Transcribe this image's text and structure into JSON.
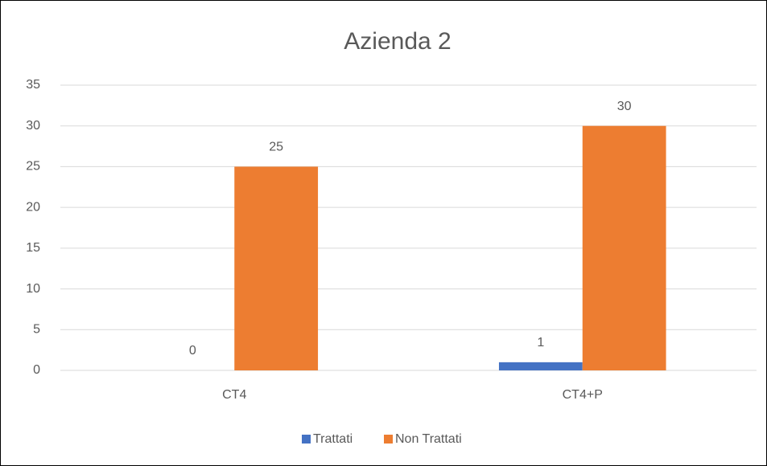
{
  "chart_data": {
    "type": "bar",
    "title": "Azienda 2",
    "categories": [
      "CT4",
      "CT4+P"
    ],
    "series": [
      {
        "name": "Trattati",
        "color": "#4472c4",
        "values": [
          0,
          1
        ]
      },
      {
        "name": "Non Trattati",
        "color": "#ed7d31",
        "values": [
          25,
          30
        ]
      }
    ],
    "ylim": [
      0,
      35
    ],
    "yticks": [
      0,
      5,
      10,
      15,
      20,
      25,
      30,
      35
    ],
    "grid": true,
    "data_labels": true,
    "legend": "bottom"
  }
}
